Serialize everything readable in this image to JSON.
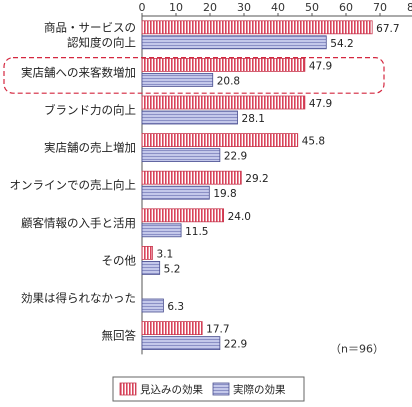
{
  "chart_data": {
    "type": "bar",
    "orientation": "horizontal",
    "categories": [
      [
        "商品・サービスの",
        "認知度の向上"
      ],
      [
        "実店舗への来客数増加"
      ],
      [
        "ブランド力の向上"
      ],
      [
        "実店舗の売上増加"
      ],
      [
        "オンラインでの売上向上"
      ],
      [
        "顧客情報の入手と活用"
      ],
      [
        "その他"
      ],
      [
        "効果は得られなかった"
      ],
      [
        "無回答"
      ]
    ],
    "series": [
      {
        "name": "見込みの効果",
        "values": [
          67.7,
          47.9,
          47.9,
          45.8,
          29.2,
          24.0,
          3.1,
          null,
          17.7
        ],
        "labels": [
          "67.7",
          "47.9",
          "47.9",
          "45.8",
          "29.2",
          "24.0",
          "3.1",
          "",
          "17.7"
        ],
        "color": "#e8a0ac",
        "stripe": "#c8394f"
      },
      {
        "name": "実際の効果",
        "values": [
          54.2,
          20.8,
          28.1,
          22.9,
          19.8,
          11.5,
          5.2,
          6.3,
          22.9
        ],
        "labels": [
          "54.2",
          "20.8",
          "28.1",
          "22.9",
          "19.8",
          "11.5",
          "5.2",
          "6.3",
          "22.9"
        ],
        "color": "#b5b9e0",
        "stripe": "#4a4f8f"
      }
    ],
    "xticks": [
      "0",
      "10",
      "20",
      "30",
      "40",
      "50",
      "60",
      "70",
      "80"
    ],
    "xlim": [
      0,
      80
    ],
    "unit": "（%）",
    "note": "（n＝96）",
    "highlighted_category": 1,
    "grid": false,
    "legend_position": "bottom"
  }
}
